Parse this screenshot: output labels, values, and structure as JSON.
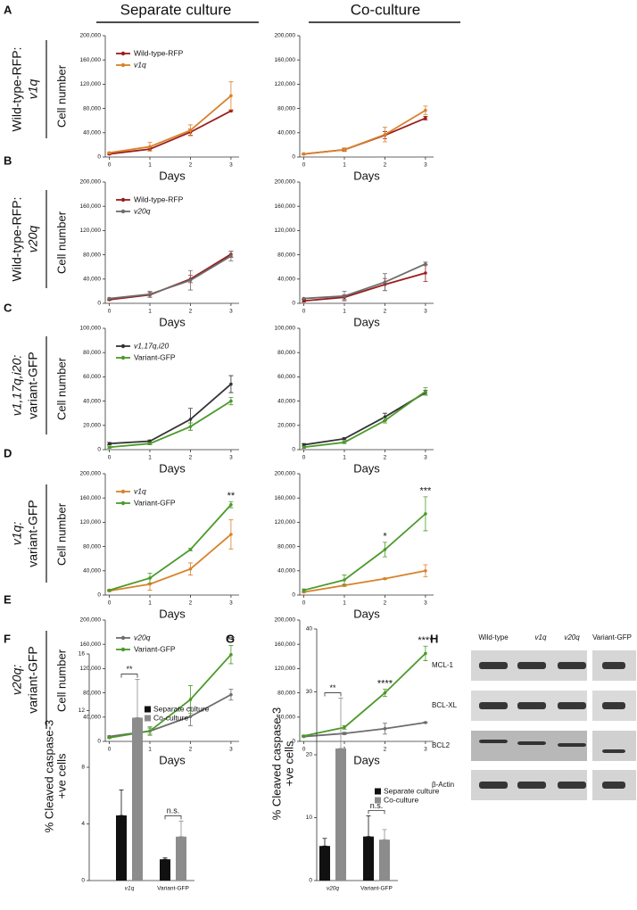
{
  "headers": [
    "Separate culture",
    "Co-culture"
  ],
  "rows": [
    {
      "letter": "A",
      "label": [
        "Wild-type-RFP:",
        "v1q"
      ],
      "italic_line": 1
    },
    {
      "letter": "B",
      "label": [
        "Wild-type-RFP:",
        "v20q"
      ],
      "italic_line": 1
    },
    {
      "letter": "C",
      "label": [
        "v1,17q,i20:",
        "variant-GFP"
      ],
      "italic_line": 0
    },
    {
      "letter": "D",
      "label": [
        "v1q:",
        "variant-GFP"
      ],
      "italic_line": 0
    },
    {
      "letter": "E",
      "label": [
        "v20q:",
        "variant-GFP"
      ],
      "italic_line": 0
    }
  ],
  "chart_data": [
    {
      "type": "line",
      "ylabel": "Cell number",
      "xlabel": "Days",
      "x": [
        0,
        1,
        2,
        3
      ],
      "xlim": [
        -0.1,
        3.2
      ],
      "xticks": [
        0,
        1,
        2,
        3
      ],
      "ylim": [
        0,
        200000
      ],
      "yticks": [
        0,
        {
          "value": 40000,
          "label": "40,000"
        },
        {
          "value": 80000,
          "label": "80,000"
        },
        {
          "value": 120000,
          "label": "120,000"
        },
        {
          "value": 160000,
          "label": "160,000"
        },
        {
          "value": 200000,
          "label": "200,000"
        }
      ],
      "legend": true,
      "series": [
        {
          "name": "Wild-type-RFP",
          "color": "#9b1c1c",
          "italic": false,
          "values": [
            5000,
            13000,
            41000,
            76000
          ],
          "errors": [
            1000,
            3000,
            5000,
            1000
          ]
        },
        {
          "name": "v1q",
          "color": "#d9822b",
          "italic": true,
          "values": [
            7000,
            17000,
            44000,
            101000
          ],
          "errors": [
            1000,
            7000,
            9000,
            23000
          ]
        }
      ]
    },
    {
      "type": "line",
      "xlabel": "Days",
      "x": [
        0,
        1,
        2,
        3
      ],
      "xlim": [
        -0.1,
        3.2
      ],
      "xticks": [
        0,
        1,
        2,
        3
      ],
      "ylim": [
        0,
        200000
      ],
      "yticks": [
        0,
        {
          "value": 40000,
          "label": "40,000"
        },
        {
          "value": 80000,
          "label": "80,000"
        },
        {
          "value": 120000,
          "label": "120,000"
        },
        {
          "value": 160000,
          "label": "160,000"
        },
        {
          "value": 200000,
          "label": "200,000"
        }
      ],
      "legend": false,
      "series": [
        {
          "color": "#9b1c1c",
          "values": [
            5000,
            12000,
            36000,
            64000
          ],
          "errors": [
            1000,
            2000,
            6000,
            3000
          ]
        },
        {
          "color": "#d9822b",
          "values": [
            5000,
            12000,
            37000,
            77000
          ],
          "errors": [
            1000,
            3000,
            12000,
            7000
          ]
        }
      ]
    },
    {
      "type": "line",
      "ylabel": "Cell number",
      "xlabel": "Days",
      "x": [
        0,
        1,
        2,
        3
      ],
      "xlim": [
        -0.1,
        3.2
      ],
      "xticks": [
        0,
        1,
        2,
        3
      ],
      "ylim": [
        0,
        200000
      ],
      "yticks": [
        0,
        {
          "value": 40000,
          "label": "40,000"
        },
        {
          "value": 80000,
          "label": "80,000"
        },
        {
          "value": 120000,
          "label": "120,000"
        },
        {
          "value": 160000,
          "label": "160,000"
        },
        {
          "value": 200000,
          "label": "200,000"
        }
      ],
      "legend": true,
      "series": [
        {
          "name": "Wild-type-RFP",
          "color": "#9b1c1c",
          "italic": false,
          "values": [
            6000,
            14000,
            40000,
            81000
          ],
          "errors": [
            1000,
            4000,
            6000,
            5000
          ]
        },
        {
          "name": "v20q",
          "color": "#6d6d6d",
          "italic": true,
          "values": [
            8000,
            15000,
            38000,
            78000
          ],
          "errors": [
            1000,
            5000,
            16000,
            8000
          ]
        }
      ]
    },
    {
      "type": "line",
      "xlabel": "Days",
      "x": [
        0,
        1,
        2,
        3
      ],
      "xlim": [
        -0.1,
        3.2
      ],
      "xticks": [
        0,
        1,
        2,
        3
      ],
      "ylim": [
        0,
        200000
      ],
      "yticks": [
        0,
        {
          "value": 40000,
          "label": "40,000"
        },
        {
          "value": 80000,
          "label": "80,000"
        },
        {
          "value": 120000,
          "label": "120,000"
        },
        {
          "value": 160000,
          "label": "160,000"
        },
        {
          "value": 200000,
          "label": "200,000"
        }
      ],
      "legend": false,
      "series": [
        {
          "color": "#9b1c1c",
          "values": [
            4000,
            10000,
            31000,
            50000
          ],
          "errors": [
            2000,
            4000,
            10000,
            14000
          ]
        },
        {
          "color": "#6d6d6d",
          "values": [
            8000,
            12000,
            35000,
            65000
          ],
          "errors": [
            1000,
            8000,
            14000,
            3000
          ]
        }
      ]
    },
    {
      "type": "line",
      "ylabel": "Cell number",
      "xlabel": "Days",
      "x": [
        0,
        1,
        2,
        3
      ],
      "xlim": [
        -0.1,
        3.2
      ],
      "xticks": [
        0,
        1,
        2,
        3
      ],
      "ylim": [
        0,
        100000
      ],
      "yticks": [
        0,
        {
          "value": 20000,
          "label": "20,000"
        },
        {
          "value": 40000,
          "label": "40,000"
        },
        {
          "value": 60000,
          "label": "60,000"
        },
        {
          "value": 80000,
          "label": "80,000"
        },
        {
          "value": 100000,
          "label": "100,000"
        }
      ],
      "legend": true,
      "series": [
        {
          "name": "v1,17q,i20",
          "color": "#333333",
          "italic": true,
          "values": [
            5000,
            7000,
            25000,
            54000
          ],
          "errors": [
            1000,
            1000,
            9000,
            7000
          ]
        },
        {
          "name": "Variant-GFP",
          "color": "#4c9a2a",
          "italic": false,
          "values": [
            2000,
            5000,
            19000,
            40000
          ],
          "errors": [
            1000,
            1000,
            3000,
            3000
          ]
        }
      ]
    },
    {
      "type": "line",
      "xlabel": "Days",
      "x": [
        0,
        1,
        2,
        3
      ],
      "xlim": [
        -0.1,
        3.2
      ],
      "xticks": [
        0,
        1,
        2,
        3
      ],
      "ylim": [
        0,
        100000
      ],
      "yticks": [
        0,
        {
          "value": 20000,
          "label": "20,000"
        },
        {
          "value": 40000,
          "label": "40,000"
        },
        {
          "value": 60000,
          "label": "60,000"
        },
        {
          "value": 80000,
          "label": "80,000"
        },
        {
          "value": 100000,
          "label": "100,000"
        }
      ],
      "legend": false,
      "series": [
        {
          "color": "#333333",
          "values": [
            4000,
            9000,
            27000,
            47000
          ],
          "errors": [
            1000,
            1000,
            3000,
            2000
          ]
        },
        {
          "color": "#4c9a2a",
          "values": [
            2000,
            6000,
            24000,
            48000
          ],
          "errors": [
            1000,
            1000,
            2000,
            3000
          ]
        }
      ]
    },
    {
      "type": "line",
      "ylabel": "Cell number",
      "xlabel": "Days",
      "x": [
        0,
        1,
        2,
        3
      ],
      "xlim": [
        -0.1,
        3.2
      ],
      "xticks": [
        0,
        1,
        2,
        3
      ],
      "ylim": [
        0,
        200000
      ],
      "yticks": [
        0,
        {
          "value": 40000,
          "label": "40,000"
        },
        {
          "value": 80000,
          "label": "80,000"
        },
        {
          "value": 120000,
          "label": "120,000"
        },
        {
          "value": 160000,
          "label": "160,000"
        },
        {
          "value": 200000,
          "label": "200,000"
        }
      ],
      "legend": true,
      "series": [
        {
          "name": "v1q",
          "color": "#d9822b",
          "italic": true,
          "values": [
            7000,
            18000,
            43000,
            100000
          ],
          "errors": [
            1000,
            10000,
            10000,
            24000
          ]
        },
        {
          "name": "Variant-GFP",
          "color": "#4c9a2a",
          "italic": false,
          "values": [
            8000,
            28000,
            75000,
            149000
          ],
          "errors": [
            1000,
            8000,
            2000,
            5000
          ]
        }
      ],
      "annotations": [
        {
          "text": "**",
          "x": 3
        }
      ]
    },
    {
      "type": "line",
      "xlabel": "Days",
      "x": [
        0,
        1,
        2,
        3
      ],
      "xlim": [
        -0.1,
        3.2
      ],
      "xticks": [
        0,
        1,
        2,
        3
      ],
      "ylim": [
        0,
        200000
      ],
      "yticks": [
        0,
        {
          "value": 40000,
          "label": "40,000"
        },
        {
          "value": 80000,
          "label": "80,000"
        },
        {
          "value": 120000,
          "label": "120,000"
        },
        {
          "value": 160000,
          "label": "160,000"
        },
        {
          "value": 200000,
          "label": "200,000"
        }
      ],
      "legend": false,
      "series": [
        {
          "color": "#d9822b",
          "values": [
            5000,
            16000,
            27000,
            40000
          ],
          "errors": [
            1000,
            2000,
            1000,
            10000
          ]
        },
        {
          "color": "#4c9a2a",
          "values": [
            8000,
            25000,
            75000,
            134000
          ],
          "errors": [
            2000,
            8000,
            12000,
            28000
          ]
        }
      ],
      "annotations": [
        {
          "text": "*",
          "x": 2
        },
        {
          "text": "***",
          "x": 3
        }
      ]
    },
    {
      "type": "line",
      "ylabel": "Cell number",
      "xlabel": "Days",
      "x": [
        0,
        1,
        2,
        3
      ],
      "xlim": [
        -0.1,
        3.2
      ],
      "xticks": [
        0,
        1,
        2,
        3
      ],
      "ylim": [
        0,
        200000
      ],
      "yticks": [
        0,
        {
          "value": 40000,
          "label": "40,000"
        },
        {
          "value": 80000,
          "label": "80,000"
        },
        {
          "value": 120000,
          "label": "120,000"
        },
        {
          "value": 160000,
          "label": "160,000"
        },
        {
          "value": 200000,
          "label": "200,000"
        }
      ],
      "legend": true,
      "series": [
        {
          "name": "v20q",
          "color": "#6d6d6d",
          "italic": true,
          "values": [
            8000,
            17000,
            41000,
            77000
          ],
          "errors": [
            1000,
            5000,
            15000,
            9000
          ]
        },
        {
          "name": "Variant-GFP",
          "color": "#4c9a2a",
          "italic": false,
          "values": [
            6000,
            17000,
            69000,
            143000
          ],
          "errors": [
            1000,
            7000,
            23000,
            15000
          ]
        }
      ],
      "annotations": [
        {
          "text": "**",
          "x": 3
        }
      ]
    },
    {
      "type": "line",
      "xlabel": "Days",
      "x": [
        0,
        1,
        2,
        3
      ],
      "xlim": [
        -0.1,
        3.2
      ],
      "xticks": [
        0,
        1,
        2,
        3
      ],
      "ylim": [
        0,
        200000
      ],
      "yticks": [
        0,
        {
          "value": 40000,
          "label": "40,000"
        },
        {
          "value": 80000,
          "label": "80,000"
        },
        {
          "value": 120000,
          "label": "120,000"
        },
        {
          "value": 160000,
          "label": "160,000"
        },
        {
          "value": 200000,
          "label": "200,000"
        }
      ],
      "legend": false,
      "series": [
        {
          "color": "#6d6d6d",
          "values": [
            8000,
            13000,
            21000,
            31000
          ],
          "errors": [
            1000,
            2000,
            9000,
            1000
          ]
        },
        {
          "color": "#4c9a2a",
          "values": [
            9000,
            23000,
            80000,
            145000
          ],
          "errors": [
            1000,
            3000,
            6000,
            12000
          ]
        }
      ],
      "annotations": [
        {
          "text": "****",
          "x": 2
        },
        {
          "text": "****",
          "x": 3
        }
      ]
    },
    {
      "type": "bar",
      "panel": "F",
      "ylabel": [
        "% Cleaved caspase-3",
        "+ve cells"
      ],
      "categories": [
        "v1q",
        "Variant-GFP"
      ],
      "italic_categories": [
        true,
        false
      ],
      "ylim": [
        0,
        16
      ],
      "yticks": [
        0,
        4,
        8,
        12,
        16
      ],
      "series": [
        {
          "name": "Separate culture",
          "color": "#111111",
          "values": [
            4.6,
            1.5
          ],
          "errors": [
            1.8,
            0.1
          ]
        },
        {
          "name": "Co-culture",
          "color": "#8c8c8c",
          "values": [
            11.5,
            3.1
          ],
          "errors": [
            2.7,
            1.1
          ]
        }
      ],
      "annotations": [
        {
          "text": "**",
          "category": 0
        },
        {
          "text": "n.s.",
          "category": 1
        }
      ]
    },
    {
      "type": "bar",
      "panel": "G",
      "ylabel": [
        "% Cleaved caspase-3",
        "+ve cells"
      ],
      "categories": [
        "v20q",
        "Variant-GFP"
      ],
      "italic_categories": [
        true,
        false
      ],
      "ylim": [
        0,
        40
      ],
      "yticks": [
        0,
        10,
        20,
        30,
        40
      ],
      "series": [
        {
          "name": "Separate culture",
          "color": "#111111",
          "values": [
            5.5,
            7.0
          ],
          "errors": [
            1.2,
            3.3
          ]
        },
        {
          "name": "Co-culture",
          "color": "#8c8c8c",
          "values": [
            21,
            6.5
          ],
          "errors": [
            8,
            1.6
          ]
        }
      ],
      "annotations": [
        {
          "text": "**",
          "category": 0
        },
        {
          "text": "n.s.",
          "category": 1
        }
      ]
    }
  ],
  "blot": {
    "letter": "H",
    "columns": [
      "Wild-type",
      "v1q",
      "v20q",
      "Variant-GFP"
    ],
    "italic_columns": [
      false,
      true,
      true,
      false
    ],
    "rows": [
      "MCL-1",
      "BCL-XL",
      "BCL2",
      "β-Actin"
    ]
  }
}
